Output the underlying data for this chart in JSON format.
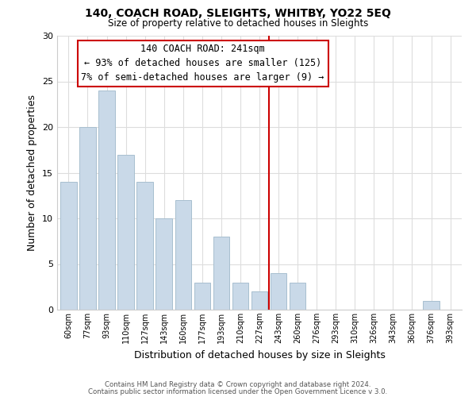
{
  "title": "140, COACH ROAD, SLEIGHTS, WHITBY, YO22 5EQ",
  "subtitle": "Size of property relative to detached houses in Sleights",
  "xlabel": "Distribution of detached houses by size in Sleights",
  "ylabel": "Number of detached properties",
  "bar_labels": [
    "60sqm",
    "77sqm",
    "93sqm",
    "110sqm",
    "127sqm",
    "143sqm",
    "160sqm",
    "177sqm",
    "193sqm",
    "210sqm",
    "227sqm",
    "243sqm",
    "260sqm",
    "276sqm",
    "293sqm",
    "310sqm",
    "326sqm",
    "343sqm",
    "360sqm",
    "376sqm",
    "393sqm"
  ],
  "bar_values": [
    14,
    20,
    24,
    17,
    14,
    10,
    12,
    3,
    8,
    3,
    2,
    4,
    3,
    0,
    0,
    0,
    0,
    0,
    0,
    1,
    0
  ],
  "bar_color": "#c9d9e8",
  "bar_edge_color": "#a8bfcf",
  "vline_index": 11,
  "vline_color": "#cc0000",
  "ylim": [
    0,
    30
  ],
  "yticks": [
    0,
    5,
    10,
    15,
    20,
    25,
    30
  ],
  "annotation_title": "140 COACH ROAD: 241sqm",
  "annotation_line1": "← 93% of detached houses are smaller (125)",
  "annotation_line2": "7% of semi-detached houses are larger (9) →",
  "annotation_box_color": "#ffffff",
  "annotation_box_edge": "#cc0000",
  "footer_line1": "Contains HM Land Registry data © Crown copyright and database right 2024.",
  "footer_line2": "Contains public sector information licensed under the Open Government Licence v 3.0.",
  "background_color": "#ffffff",
  "grid_color": "#dddddd"
}
